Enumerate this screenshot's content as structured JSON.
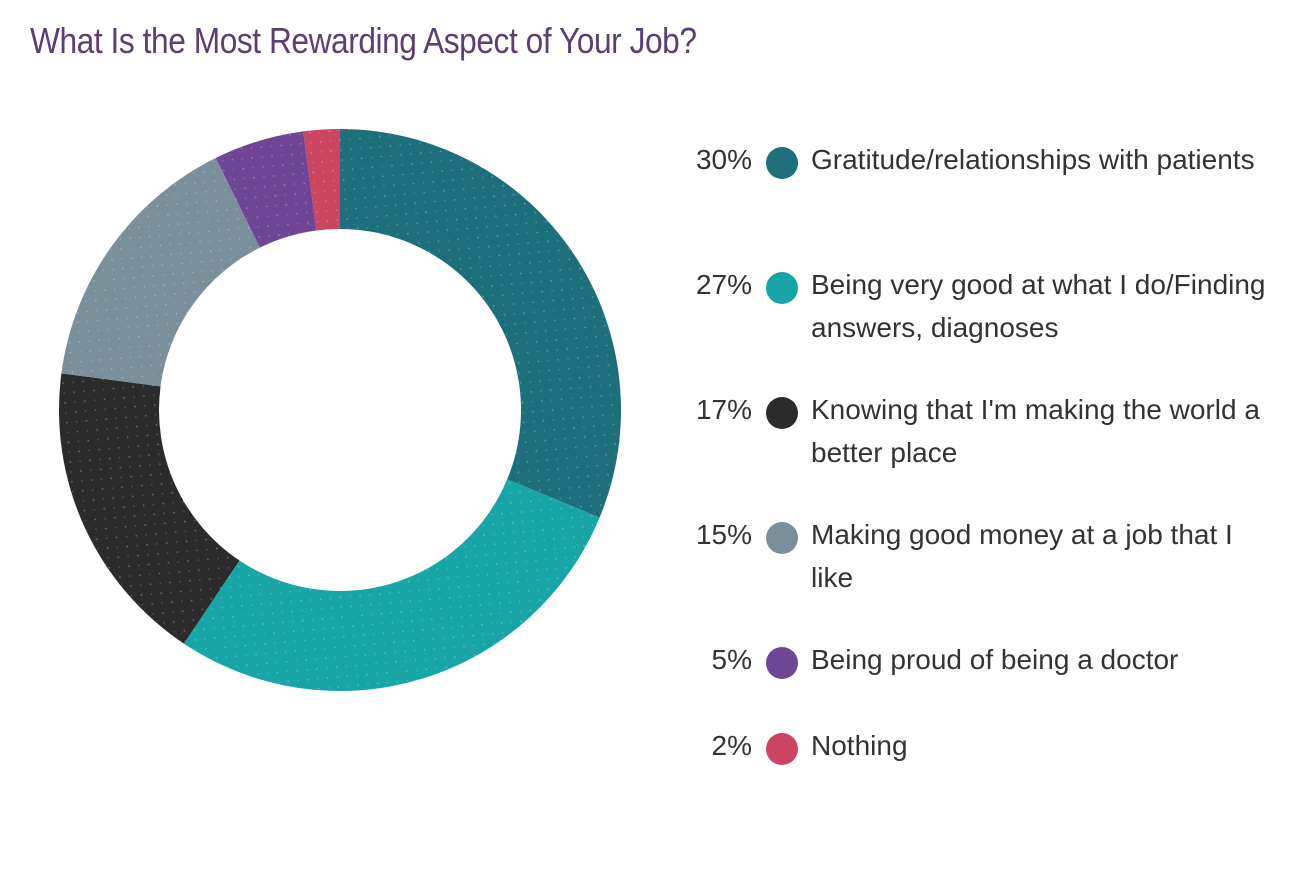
{
  "chart_data": {
    "type": "pie",
    "style": "donut",
    "title": "What Is the Most Rewarding Aspect of Your Job?",
    "title_color": "#5B3F73",
    "legend_position": "right",
    "slices": [
      {
        "label": "Gratitude/relationships with patients",
        "value": 30,
        "display": "30%",
        "color": "#1E6F7C"
      },
      {
        "label": "Being very good at what I do/Finding answers, diagnoses",
        "value": 27,
        "display": "27%",
        "color": "#17A5A8"
      },
      {
        "label": "Knowing that I'm making the world a better place",
        "value": 17,
        "display": "17%",
        "color": "#2B2B2B"
      },
      {
        "label": "Making good money at a job that I like",
        "value": 15,
        "display": "15%",
        "color": "#7A8F9A"
      },
      {
        "label": "Being proud of being a doctor",
        "value": 5,
        "display": "5%",
        "color": "#6F4596"
      },
      {
        "label": "Nothing",
        "value": 2,
        "display": "2%",
        "color": "#C94560"
      }
    ]
  }
}
